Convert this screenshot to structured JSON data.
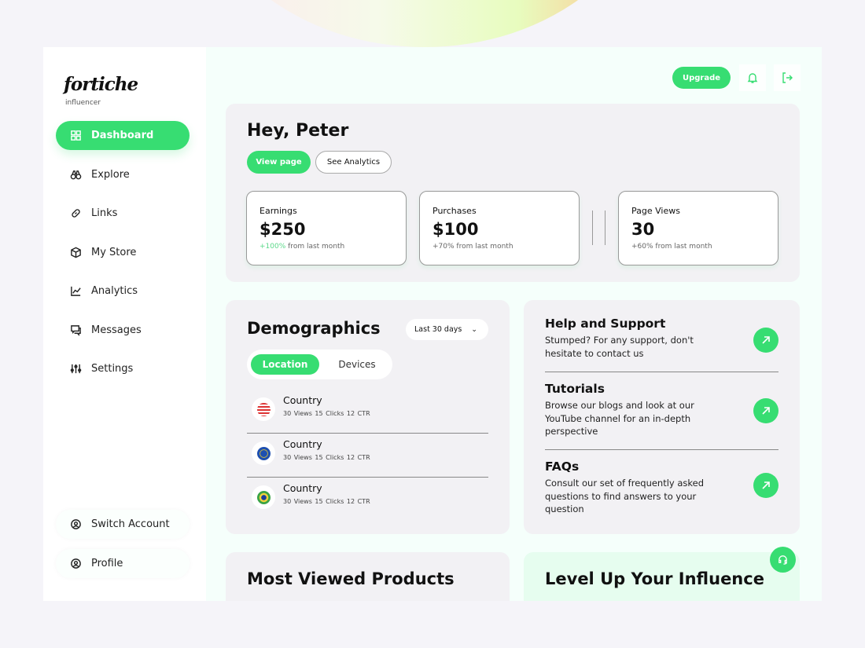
{
  "brand": {
    "name": "fortiche",
    "tagline": "influencer"
  },
  "sidebar": {
    "items": [
      {
        "label": "Dashboard",
        "icon": "grid-icon",
        "active": true
      },
      {
        "label": "Explore",
        "icon": "binoculars-icon"
      },
      {
        "label": "Links",
        "icon": "link-icon"
      },
      {
        "label": "My Store",
        "icon": "box-icon"
      },
      {
        "label": "Analytics",
        "icon": "chart-icon"
      },
      {
        "label": "Messages",
        "icon": "messages-icon"
      },
      {
        "label": "Settings",
        "icon": "sliders-icon"
      }
    ],
    "bottom": [
      {
        "label": "Switch Account",
        "icon": "switch-account-icon"
      },
      {
        "label": "Profile",
        "icon": "profile-icon"
      }
    ]
  },
  "header": {
    "upgrade": "Upgrade"
  },
  "hero": {
    "greeting": "Hey, Peter",
    "view_page": "View page",
    "see_analytics": "See Analytics",
    "stats": [
      {
        "label": "Earnings",
        "value": "$250",
        "change": "+100%",
        "suffix": " from last month"
      },
      {
        "label": "Purchases",
        "value": "$100",
        "change": "+70%",
        "suffix": " from last month"
      },
      {
        "label": "Page Views",
        "value": "30",
        "change": "+60%",
        "suffix": " from last month"
      }
    ]
  },
  "demographics": {
    "title": "Demographics",
    "range": "Last 30 days",
    "tabs": [
      "Location",
      "Devices"
    ],
    "rows": [
      {
        "name": "Country",
        "stats": "30 Views  15 Clicks  12 CTR",
        "flag": "us-flag-icon"
      },
      {
        "name": "Country",
        "stats": "30 Views  15 Clicks  12 CTR",
        "flag": "eu-flag-icon"
      },
      {
        "name": "Country",
        "stats": "30 Views  15 Clicks  12 CTR",
        "flag": "brazil-flag-icon"
      }
    ]
  },
  "support": [
    {
      "title": "Help and Support",
      "text": "Stumped? For any support, don't hesitate to contact us"
    },
    {
      "title": "Tutorials",
      "text": "Browse our blogs and look at our YouTube channel for an in-depth perspective"
    },
    {
      "title": "FAQs",
      "text": "Consult our set of frequently asked questions to find answers to your question"
    }
  ],
  "bottom": {
    "products_title": "Most Viewed Products",
    "level_title": "Level Up Your Influence"
  },
  "colors": {
    "accent": "#37dd72",
    "panel": "#f2f1f4",
    "main_bg": "#f5fffb"
  }
}
